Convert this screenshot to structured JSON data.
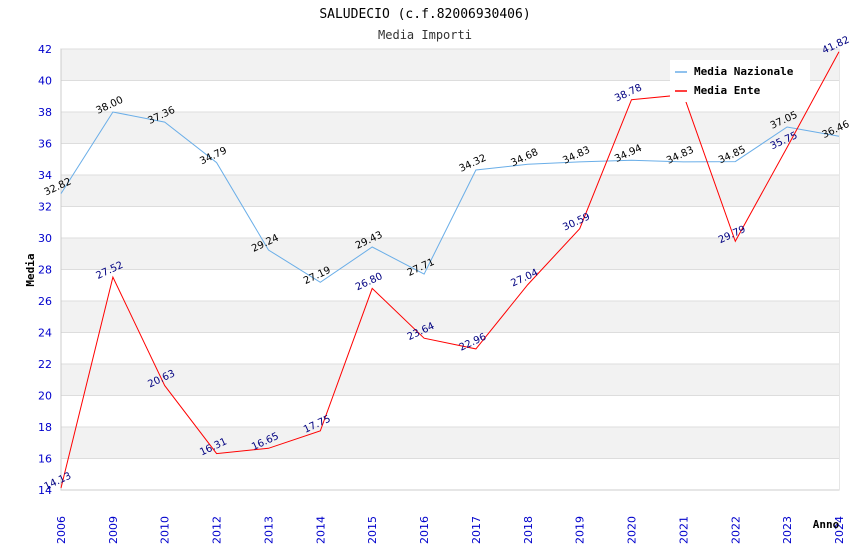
{
  "chart_data": {
    "type": "line",
    "title": "SALUDECIO (c.f.82006930406)",
    "subtitle": "Media Importi",
    "xlabel": "Anno",
    "ylabel": "Media",
    "categories": [
      "2006",
      "2009",
      "2010",
      "2012",
      "2013",
      "2014",
      "2015",
      "2016",
      "2017",
      "2018",
      "2019",
      "2020",
      "2021",
      "2022",
      "2023",
      "2024"
    ],
    "ylim": [
      14,
      42
    ],
    "yticks": [
      14,
      16,
      18,
      20,
      22,
      24,
      26,
      28,
      30,
      32,
      34,
      36,
      38,
      40,
      42
    ],
    "grid": "horizontal alternating bands",
    "legend_position": "top-right",
    "series": [
      {
        "name": "Media Nazionale",
        "color": "#6aaee8",
        "values": [
          32.82,
          38.0,
          37.36,
          34.79,
          29.24,
          27.19,
          29.43,
          27.71,
          34.32,
          34.68,
          34.83,
          34.94,
          34.83,
          34.85,
          37.05,
          36.46
        ],
        "labels": [
          "32.82",
          "38.00",
          "37.36",
          "34.79",
          "29.24",
          "27.19",
          "29.43",
          "27.71",
          "34.32",
          "34.68",
          "34.83",
          "34.94",
          "34.83",
          "34.85",
          "37.05",
          "36.46"
        ]
      },
      {
        "name": "Media Ente",
        "color": "#ff0000",
        "values": [
          14.13,
          27.52,
          20.63,
          16.31,
          16.65,
          17.75,
          26.8,
          23.64,
          22.96,
          27.04,
          30.59,
          38.78,
          39.1,
          29.79,
          35.75,
          41.82
        ],
        "labels": [
          "14.13",
          "27.52",
          "20.63",
          "16.31",
          "16.65",
          "17.75",
          "26.80",
          "23.64",
          "22.96",
          "27.04",
          "30.59",
          "38.78",
          null,
          "29.79",
          "35.75",
          "41.82"
        ]
      }
    ]
  }
}
